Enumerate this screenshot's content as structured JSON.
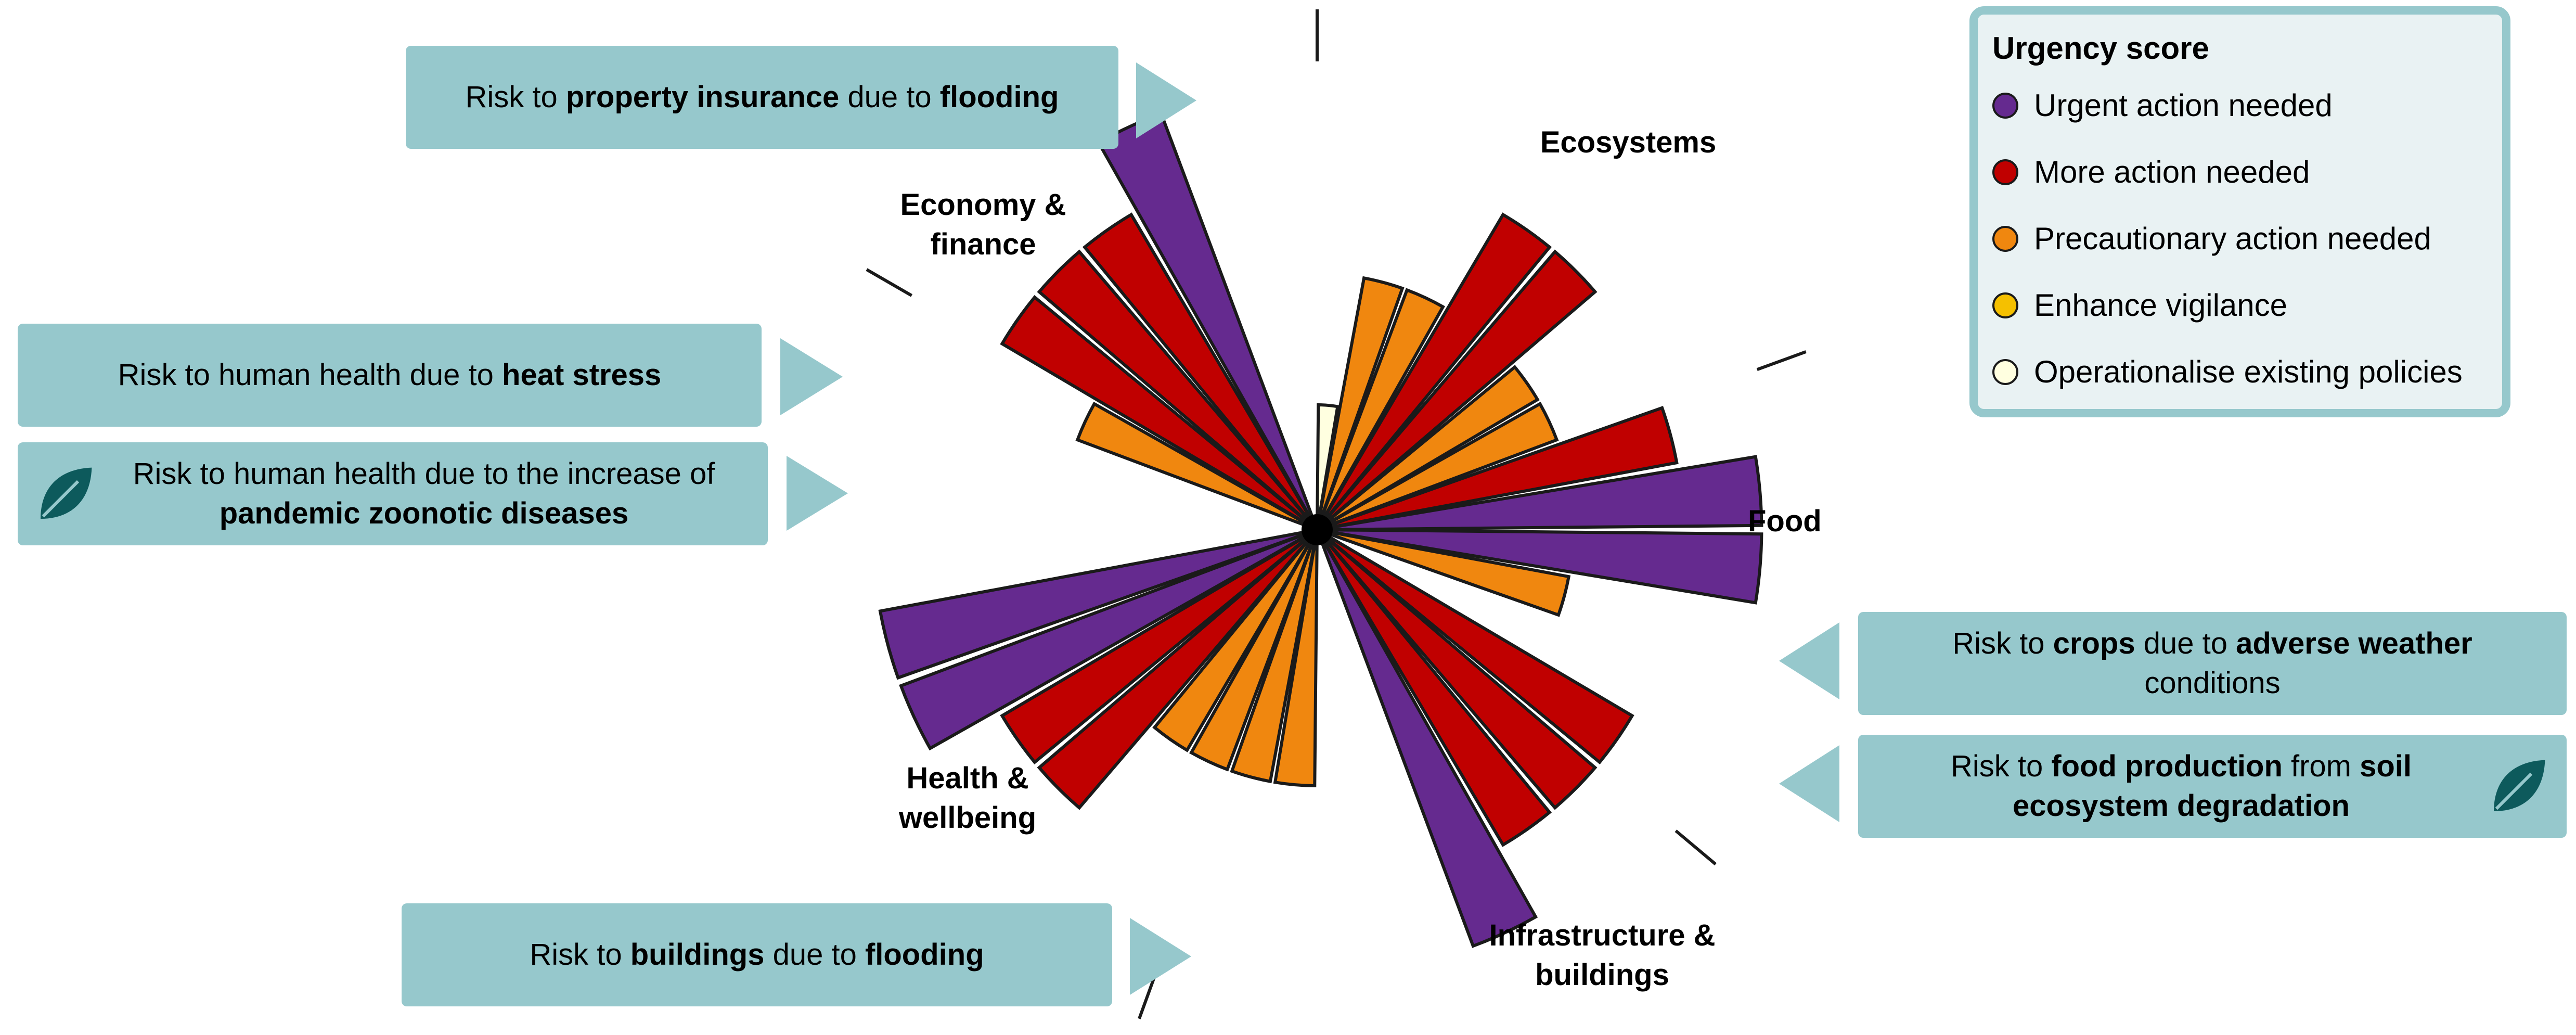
{
  "chart_data": {
    "type": "polar-bar",
    "legend_title": "Urgency score",
    "legend": [
      {
        "label": "Urgent action needed",
        "color": "#652a8f"
      },
      {
        "label": "More action needed",
        "color": "#c00000"
      },
      {
        "label": "Precautionary action needed",
        "color": "#f0870f"
      },
      {
        "label": "Enhance vigilance",
        "color": "#f5c000"
      },
      {
        "label": "Operationalise existing policies",
        "color": "#ffffe0"
      }
    ],
    "categories": [
      "Ecosystems",
      "Food",
      "Infrastructure & buildings",
      "Health & wellbeing",
      "Economy & finance"
    ],
    "bars": [
      {
        "category": "Ecosystems",
        "value": 1.0,
        "urgency": "Operationalise existing policies"
      },
      {
        "category": "Ecosystems",
        "value": 2.05,
        "urgency": "Precautionary action needed"
      },
      {
        "category": "Ecosystems",
        "value": 2.05,
        "urgency": "Precautionary action needed"
      },
      {
        "category": "Ecosystems",
        "value": 2.93,
        "urgency": "More action needed"
      },
      {
        "category": "Ecosystems",
        "value": 2.93,
        "urgency": "More action needed"
      },
      {
        "category": "Ecosystems",
        "value": 2.05,
        "urgency": "Precautionary action needed"
      },
      {
        "category": "Ecosystems",
        "value": 2.05,
        "urgency": "Precautionary action needed"
      },
      {
        "category": "Food",
        "value": 2.93,
        "urgency": "More action needed"
      },
      {
        "category": "Food",
        "value": 3.56,
        "urgency": "Urgent action needed"
      },
      {
        "category": "Food",
        "value": 3.56,
        "urgency": "Urgent action needed"
      },
      {
        "category": "Food",
        "value": 2.05,
        "urgency": "Precautionary action needed"
      },
      {
        "category": "Infrastructure & buildings",
        "value": 2.93,
        "urgency": "More action needed"
      },
      {
        "category": "Infrastructure & buildings",
        "value": 2.93,
        "urgency": "More action needed"
      },
      {
        "category": "Infrastructure & buildings",
        "value": 2.93,
        "urgency": "More action needed"
      },
      {
        "category": "Infrastructure & buildings",
        "value": 3.56,
        "urgency": "Urgent action needed"
      },
      {
        "category": "Health & wellbeing",
        "value": 2.05,
        "urgency": "Precautionary action needed"
      },
      {
        "category": "Health & wellbeing",
        "value": 2.05,
        "urgency": "Precautionary action needed"
      },
      {
        "category": "Health & wellbeing",
        "value": 2.05,
        "urgency": "Precautionary action needed"
      },
      {
        "category": "Health & wellbeing",
        "value": 2.05,
        "urgency": "Precautionary action needed"
      },
      {
        "category": "Health & wellbeing",
        "value": 2.93,
        "urgency": "More action needed"
      },
      {
        "category": "Health & wellbeing",
        "value": 2.93,
        "urgency": "More action needed"
      },
      {
        "category": "Health & wellbeing",
        "value": 3.56,
        "urgency": "Urgent action needed"
      },
      {
        "category": "Health & wellbeing",
        "value": 3.56,
        "urgency": "Urgent action needed"
      },
      {
        "category": "Economy & finance",
        "value": 2.05,
        "urgency": "Precautionary action needed"
      },
      {
        "category": "Economy & finance",
        "value": 2.93,
        "urgency": "More action needed"
      },
      {
        "category": "Economy & finance",
        "value": 2.93,
        "urgency": "More action needed"
      },
      {
        "category": "Economy & finance",
        "value": 2.93,
        "urgency": "More action needed"
      },
      {
        "category": "Economy & finance",
        "value": 3.56,
        "urgency": "Urgent action needed"
      }
    ],
    "callouts": [
      {
        "html": "Risk to <b>property insurance</b> due to <b>flooding</b>",
        "leaf": false
      },
      {
        "html": "Risk to human health due to <b>heat stress</b>",
        "leaf": false
      },
      {
        "html": "Risk to human health due to the increase of<br><b>pandemic zoonotic diseases</b>",
        "leaf": true
      },
      {
        "html": "Risk to <b>crops</b> due to <b>adverse weather</b><br>conditions",
        "leaf": false
      },
      {
        "html": "Risk to <b>food production</b> from <b>soil</b><br><b>ecosystem degradation</b>",
        "leaf": true
      },
      {
        "html": "Risk to <b>buildings</b> due to <b>flooding</b>",
        "leaf": false
      }
    ]
  },
  "labels": {
    "ecosystems": "Ecosystems",
    "food": "Food",
    "infrastructure_1": "Infrastructure &",
    "infrastructure_2": "buildings",
    "health_1": "Health &",
    "health_2": "wellbeing",
    "economy_1": "Economy &",
    "economy_2": "finance"
  },
  "icons": {
    "leaf": "leaf-icon",
    "arrow": "triangle-arrow-icon"
  },
  "colors": {
    "callout_bg": "#96c8cc",
    "legend_bg": "#e9f2f3"
  }
}
